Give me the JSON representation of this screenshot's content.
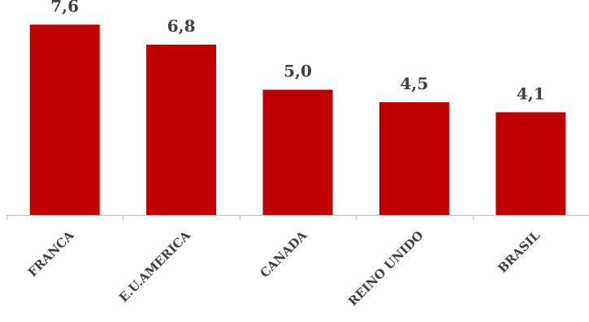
{
  "chart_data": {
    "type": "bar",
    "categories": [
      "FRANCA",
      "E.U.AMERICA",
      "CANADA",
      "REINO UNIDO",
      "BRASIL"
    ],
    "values": [
      7.6,
      6.8,
      5.0,
      4.5,
      4.1
    ],
    "value_labels": [
      "7,6",
      "6,8",
      "5,0",
      "4,5",
      "4,1"
    ],
    "title": "",
    "xlabel": "",
    "ylabel": "",
    "ylim": [
      0,
      8
    ],
    "grid": false,
    "legend": "none",
    "colors": {
      "bar": "#c00000",
      "axis": "#bfbfbf",
      "text": "#404040"
    }
  }
}
